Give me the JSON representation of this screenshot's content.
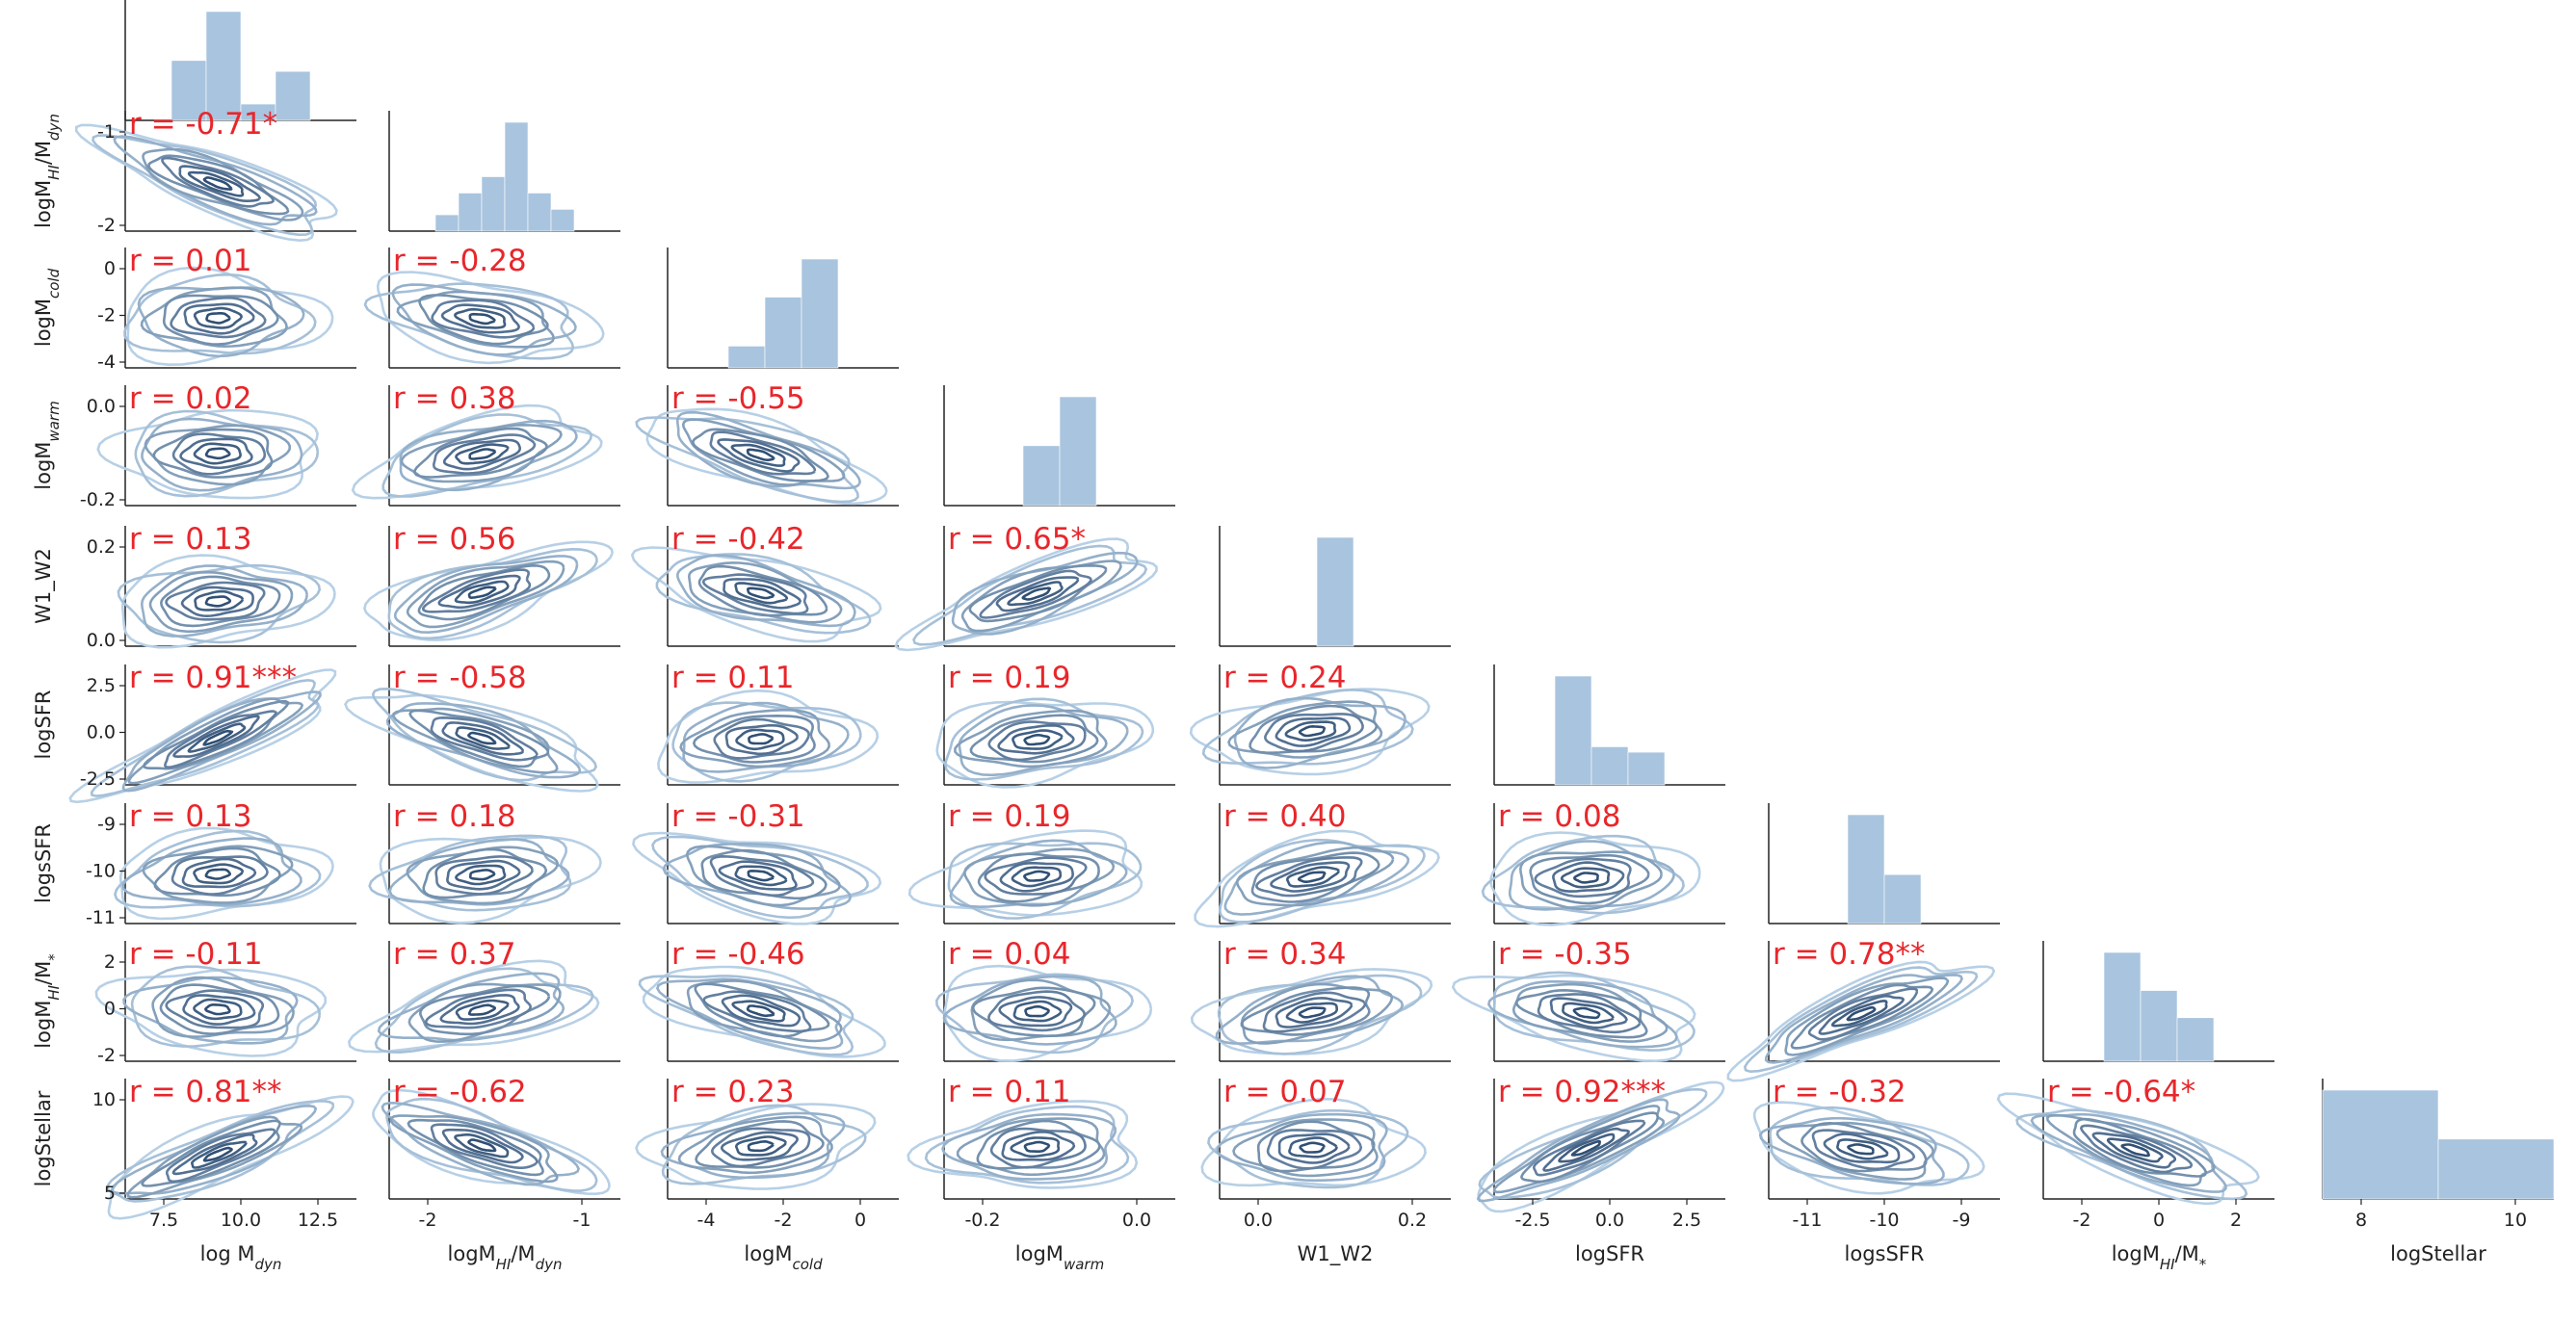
{
  "chart_data": {
    "type": "pairplot",
    "kind": "kde-contour",
    "variables": [
      {
        "id": "logMdyn",
        "base": "log M",
        "sub": "dyn"
      },
      {
        "id": "logMHIdyn",
        "base": "logM",
        "sub": "HI",
        "mid": "/M",
        "sub2": "dyn"
      },
      {
        "id": "logMcold",
        "base": "logM",
        "sub": "cold"
      },
      {
        "id": "logMwarm",
        "base": "logM",
        "sub": "warm"
      },
      {
        "id": "W1_W2",
        "base": "W1_W2"
      },
      {
        "id": "logSFR",
        "base": "logSFR"
      },
      {
        "id": "logsSFR",
        "base": "logsSFR"
      },
      {
        "id": "logMHIstar",
        "base": "logM",
        "sub": "HI",
        "mid": "/M",
        "sub2": "*"
      },
      {
        "id": "logStellar",
        "base": "logStellar"
      }
    ],
    "x_ticks": [
      [
        "7.5",
        "10.0",
        "12.5"
      ],
      [
        "-2",
        "-1"
      ],
      [
        "-4",
        "-2",
        "0"
      ],
      [
        "-0.2",
        "0.0"
      ],
      [
        "0.0",
        "0.2"
      ],
      [
        "-2.5",
        "0.0",
        "2.5"
      ],
      [
        "-11",
        "-10",
        "-9"
      ],
      [
        "-2",
        "0",
        "2"
      ],
      [
        "8",
        "10"
      ]
    ],
    "y_ticks": {
      "logMHIdyn": [
        "-1",
        "-2"
      ],
      "logMcold": [
        "0",
        "-2",
        "-4"
      ],
      "logMwarm": [
        "0.0",
        "-0.2"
      ],
      "W1_W2": [
        "0.2",
        "0.0"
      ],
      "logSFR": [
        "2.5",
        "0.0",
        "-2.5"
      ],
      "logsSFR": [
        "-9",
        "-10",
        "-11"
      ],
      "logMHIstar": [
        "2",
        "0",
        "-2"
      ],
      "logStellar": [
        "10",
        "5"
      ]
    },
    "histograms": [
      [
        0.55,
        1.0,
        0.15,
        0.45
      ],
      [
        0.15,
        0.35,
        0.5,
        1.0,
        0.35,
        0.2
      ],
      [
        0.2,
        0.65,
        1.0
      ],
      [
        0.55,
        1.0
      ],
      [
        1.0
      ],
      [
        1.0,
        0.35,
        0.3
      ],
      [
        1.0,
        0.45
      ],
      [
        1.0,
        0.65,
        0.4
      ],
      [
        1.0,
        0.55
      ]
    ],
    "correlations": [
      {
        "row": 1,
        "col": 0,
        "label": "r = -0.71*"
      },
      {
        "row": 2,
        "col": 0,
        "label": "r = 0.01"
      },
      {
        "row": 2,
        "col": 1,
        "label": "r = -0.28"
      },
      {
        "row": 3,
        "col": 0,
        "label": "r = 0.02"
      },
      {
        "row": 3,
        "col": 1,
        "label": "r = 0.38"
      },
      {
        "row": 3,
        "col": 2,
        "label": "r = -0.55"
      },
      {
        "row": 4,
        "col": 0,
        "label": "r = 0.13"
      },
      {
        "row": 4,
        "col": 1,
        "label": "r = 0.56"
      },
      {
        "row": 4,
        "col": 2,
        "label": "r = -0.42"
      },
      {
        "row": 4,
        "col": 3,
        "label": "r = 0.65*"
      },
      {
        "row": 5,
        "col": 0,
        "label": "r = 0.91***"
      },
      {
        "row": 5,
        "col": 1,
        "label": "r = -0.58"
      },
      {
        "row": 5,
        "col": 2,
        "label": "r = 0.11"
      },
      {
        "row": 5,
        "col": 3,
        "label": "r = 0.19"
      },
      {
        "row": 5,
        "col": 4,
        "label": "r = 0.24"
      },
      {
        "row": 6,
        "col": 0,
        "label": "r = 0.13"
      },
      {
        "row": 6,
        "col": 1,
        "label": "r = 0.18"
      },
      {
        "row": 6,
        "col": 2,
        "label": "r = -0.31"
      },
      {
        "row": 6,
        "col": 3,
        "label": "r = 0.19"
      },
      {
        "row": 6,
        "col": 4,
        "label": "r = 0.40"
      },
      {
        "row": 6,
        "col": 5,
        "label": "r = 0.08"
      },
      {
        "row": 7,
        "col": 0,
        "label": "r = -0.11"
      },
      {
        "row": 7,
        "col": 1,
        "label": "r = 0.37"
      },
      {
        "row": 7,
        "col": 2,
        "label": "r = -0.46"
      },
      {
        "row": 7,
        "col": 3,
        "label": "r = 0.04"
      },
      {
        "row": 7,
        "col": 4,
        "label": "r = 0.34"
      },
      {
        "row": 7,
        "col": 5,
        "label": "r = -0.35"
      },
      {
        "row": 7,
        "col": 6,
        "label": "r = 0.78**"
      },
      {
        "row": 8,
        "col": 0,
        "label": "r = 0.81**"
      },
      {
        "row": 8,
        "col": 1,
        "label": "r = -0.62"
      },
      {
        "row": 8,
        "col": 2,
        "label": "r = 0.23"
      },
      {
        "row": 8,
        "col": 3,
        "label": "r = 0.11"
      },
      {
        "row": 8,
        "col": 4,
        "label": "r = 0.07"
      },
      {
        "row": 8,
        "col": 5,
        "label": "r = 0.92***"
      },
      {
        "row": 8,
        "col": 6,
        "label": "r = -0.32"
      },
      {
        "row": 8,
        "col": 7,
        "label": "r = -0.64*"
      }
    ],
    "colors": {
      "hist_fill": "#a9c4de",
      "contour_outer": "#b7d0e6",
      "contour_inner": "#1f3f66",
      "r_text": "#e8262b",
      "axis": "#222222"
    }
  }
}
